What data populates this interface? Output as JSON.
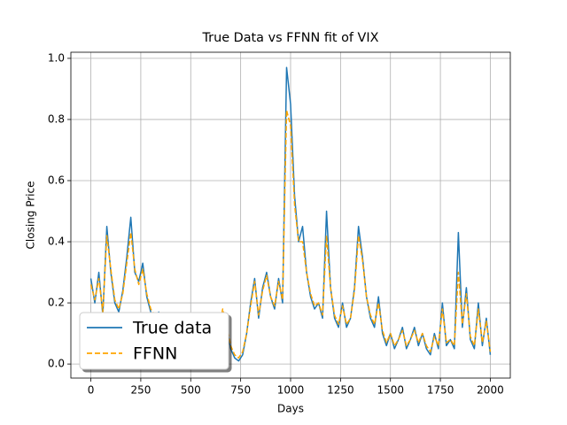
{
  "chart_data": {
    "type": "line",
    "title": "True Data vs FFNN fit of VIX",
    "xlabel": "Days",
    "ylabel": "Closing Price",
    "x": [
      0,
      20,
      40,
      60,
      80,
      100,
      120,
      140,
      160,
      180,
      200,
      220,
      240,
      260,
      280,
      300,
      320,
      340,
      360,
      380,
      400,
      420,
      440,
      460,
      480,
      500,
      520,
      540,
      560,
      580,
      600,
      620,
      640,
      660,
      680,
      700,
      720,
      740,
      760,
      780,
      800,
      820,
      840,
      860,
      880,
      900,
      920,
      940,
      960,
      980,
      1000,
      1020,
      1040,
      1060,
      1080,
      1100,
      1120,
      1140,
      1160,
      1180,
      1200,
      1220,
      1240,
      1260,
      1280,
      1300,
      1320,
      1340,
      1360,
      1380,
      1400,
      1420,
      1440,
      1460,
      1480,
      1500,
      1520,
      1540,
      1560,
      1580,
      1600,
      1620,
      1640,
      1660,
      1680,
      1700,
      1720,
      1740,
      1760,
      1780,
      1800,
      1820,
      1840,
      1860,
      1880,
      1900,
      1920,
      1940,
      1960,
      1980,
      2000
    ],
    "series": [
      {
        "name": "True data",
        "color": "#1f77b4",
        "dashed": false,
        "values": [
          0.28,
          0.2,
          0.3,
          0.16,
          0.45,
          0.3,
          0.2,
          0.17,
          0.24,
          0.35,
          0.48,
          0.3,
          0.27,
          0.33,
          0.22,
          0.17,
          0.15,
          0.17,
          0.12,
          0.1,
          0.12,
          0.09,
          0.11,
          0.08,
          0.1,
          0.07,
          0.09,
          0.1,
          0.08,
          0.11,
          0.09,
          0.12,
          0.1,
          0.15,
          0.12,
          0.05,
          0.02,
          0.01,
          0.03,
          0.1,
          0.2,
          0.28,
          0.15,
          0.25,
          0.3,
          0.22,
          0.18,
          0.28,
          0.2,
          0.97,
          0.85,
          0.55,
          0.4,
          0.45,
          0.3,
          0.22,
          0.18,
          0.2,
          0.15,
          0.5,
          0.25,
          0.15,
          0.12,
          0.2,
          0.12,
          0.15,
          0.25,
          0.45,
          0.35,
          0.22,
          0.15,
          0.12,
          0.22,
          0.1,
          0.06,
          0.1,
          0.05,
          0.08,
          0.12,
          0.05,
          0.08,
          0.12,
          0.06,
          0.1,
          0.05,
          0.03,
          0.1,
          0.05,
          0.2,
          0.06,
          0.08,
          0.05,
          0.43,
          0.12,
          0.25,
          0.08,
          0.05,
          0.2,
          0.06,
          0.15,
          0.03
        ]
      },
      {
        "name": "FFNN",
        "color": "#ffa500",
        "dashed": true,
        "values": [
          0.26,
          0.21,
          0.28,
          0.17,
          0.42,
          0.31,
          0.21,
          0.18,
          0.23,
          0.33,
          0.43,
          0.31,
          0.26,
          0.31,
          0.23,
          0.18,
          0.16,
          0.16,
          0.13,
          0.11,
          0.12,
          0.1,
          0.11,
          0.09,
          0.1,
          0.08,
          0.09,
          0.1,
          0.09,
          0.11,
          0.1,
          0.12,
          0.11,
          0.18,
          0.13,
          0.06,
          0.03,
          0.02,
          0.04,
          0.1,
          0.19,
          0.27,
          0.16,
          0.24,
          0.29,
          0.22,
          0.19,
          0.27,
          0.21,
          0.83,
          0.78,
          0.52,
          0.4,
          0.4,
          0.3,
          0.23,
          0.19,
          0.2,
          0.16,
          0.42,
          0.25,
          0.16,
          0.13,
          0.19,
          0.13,
          0.15,
          0.24,
          0.42,
          0.34,
          0.22,
          0.16,
          0.13,
          0.2,
          0.11,
          0.07,
          0.1,
          0.06,
          0.08,
          0.11,
          0.06,
          0.08,
          0.11,
          0.07,
          0.1,
          0.06,
          0.04,
          0.09,
          0.06,
          0.18,
          0.07,
          0.08,
          0.06,
          0.3,
          0.13,
          0.23,
          0.09,
          0.06,
          0.18,
          0.07,
          0.14,
          0.04
        ]
      }
    ],
    "xlim": [
      -100,
      2100
    ],
    "ylim": [
      -0.046,
      1.02
    ],
    "xticks": [
      0,
      250,
      500,
      750,
      1000,
      1250,
      1500,
      1750,
      2000
    ],
    "yticks": [
      {
        "value": 0,
        "label": "0.0"
      },
      0.2,
      0.4,
      0.6,
      0.8,
      {
        "value": 1,
        "label": "1.0"
      }
    ],
    "grid": true,
    "legend": "lower left"
  }
}
